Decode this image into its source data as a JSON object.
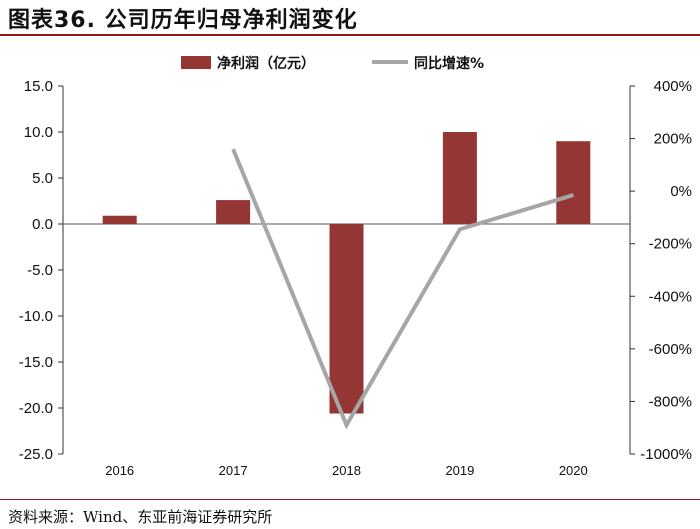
{
  "figure": {
    "title": "图表36. 公司历年归母净利润变化",
    "source": "资料来源：Wind、东亚前海证券研究所"
  },
  "chart_data": {
    "type": "bar",
    "categories": [
      "2016",
      "2017",
      "2018",
      "2019",
      "2020"
    ],
    "series": [
      {
        "name": "净利润（亿元）",
        "type": "bar",
        "axis": "left",
        "values": [
          0.9,
          2.6,
          -20.6,
          10.0,
          9.0
        ],
        "color": "#943634"
      },
      {
        "name": "同比增速%",
        "type": "line",
        "axis": "right",
        "values": [
          null,
          160,
          -890,
          -145,
          -15
        ],
        "color": "#a6a6a6"
      }
    ],
    "y_left": {
      "ylim": [
        -25,
        15
      ],
      "ticks": [
        15,
        10,
        5,
        0,
        -5,
        -10,
        -15,
        -20,
        -25
      ],
      "tick_labels": [
        "15.0",
        "10.0",
        "5.0",
        "0.0",
        "-5.0",
        "-10.0",
        "-15.0",
        "-20.0",
        "-25.0"
      ]
    },
    "y_right": {
      "ylim": [
        -1000,
        400
      ],
      "ticks": [
        400,
        200,
        0,
        -200,
        -400,
        -600,
        -800,
        -1000
      ],
      "tick_labels": [
        "400%",
        "200%",
        "0%",
        "-200%",
        "-400%",
        "-600%",
        "-800%",
        "-1000%"
      ]
    },
    "legend_position": "top",
    "grid": false
  }
}
